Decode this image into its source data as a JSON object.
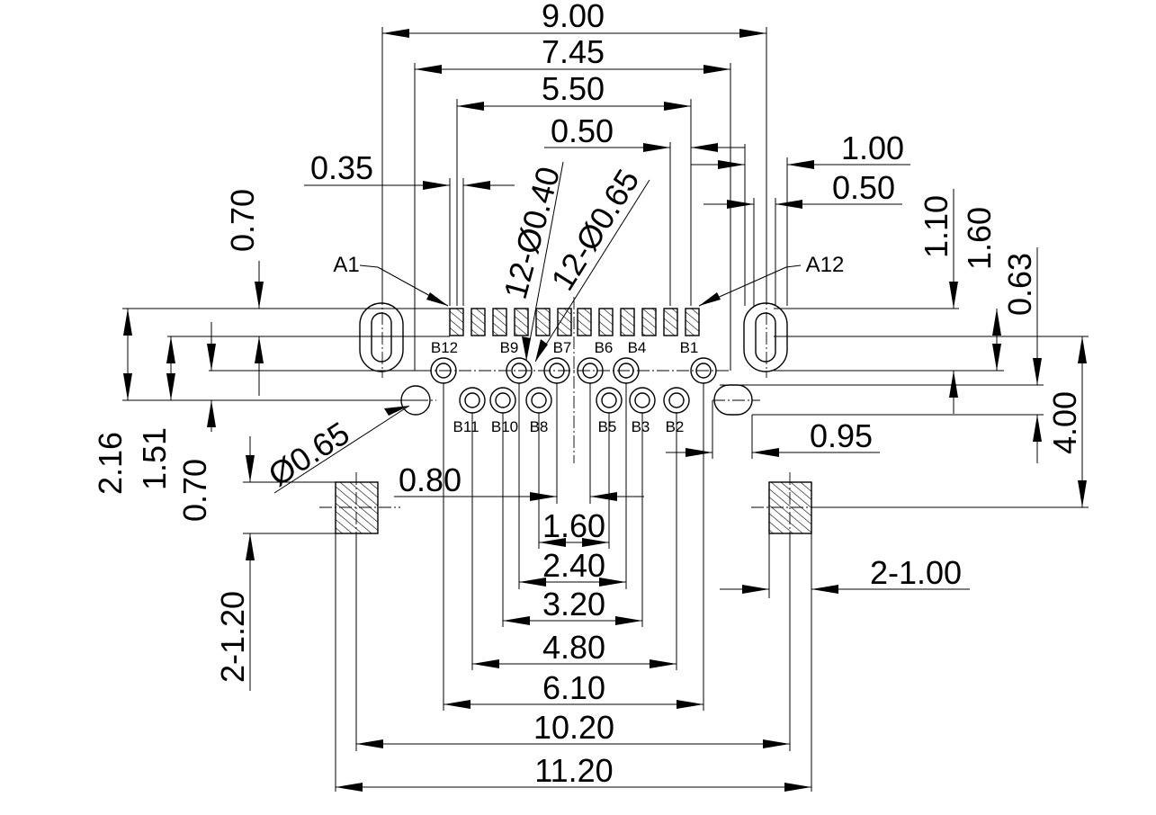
{
  "dimensions": {
    "top": [
      "9.00",
      "7.45",
      "5.50",
      "0.50",
      "1.00",
      "0.50",
      "0.35"
    ],
    "right": [
      "1.10",
      "1.60",
      "0.63",
      "4.00",
      "0.95",
      "2-1.00"
    ],
    "left": [
      "0.70",
      "2.16",
      "1.51",
      "0.70",
      "2-1.20"
    ],
    "bottom": [
      "0.80",
      "1.60",
      "2.40",
      "3.20",
      "4.80",
      "6.10",
      "10.20",
      "11.20"
    ],
    "holes": [
      "12-Ø0.40",
      "12-Ø0.65",
      "Ø0.65"
    ]
  },
  "pin_labels": {
    "corners": [
      "A1",
      "A12"
    ],
    "row_b_top": [
      "B12",
      "B9",
      "B7",
      "B6",
      "B4",
      "B1"
    ],
    "row_b_bottom": [
      "B11",
      "B10",
      "B8",
      "B5",
      "B3",
      "B2"
    ]
  }
}
